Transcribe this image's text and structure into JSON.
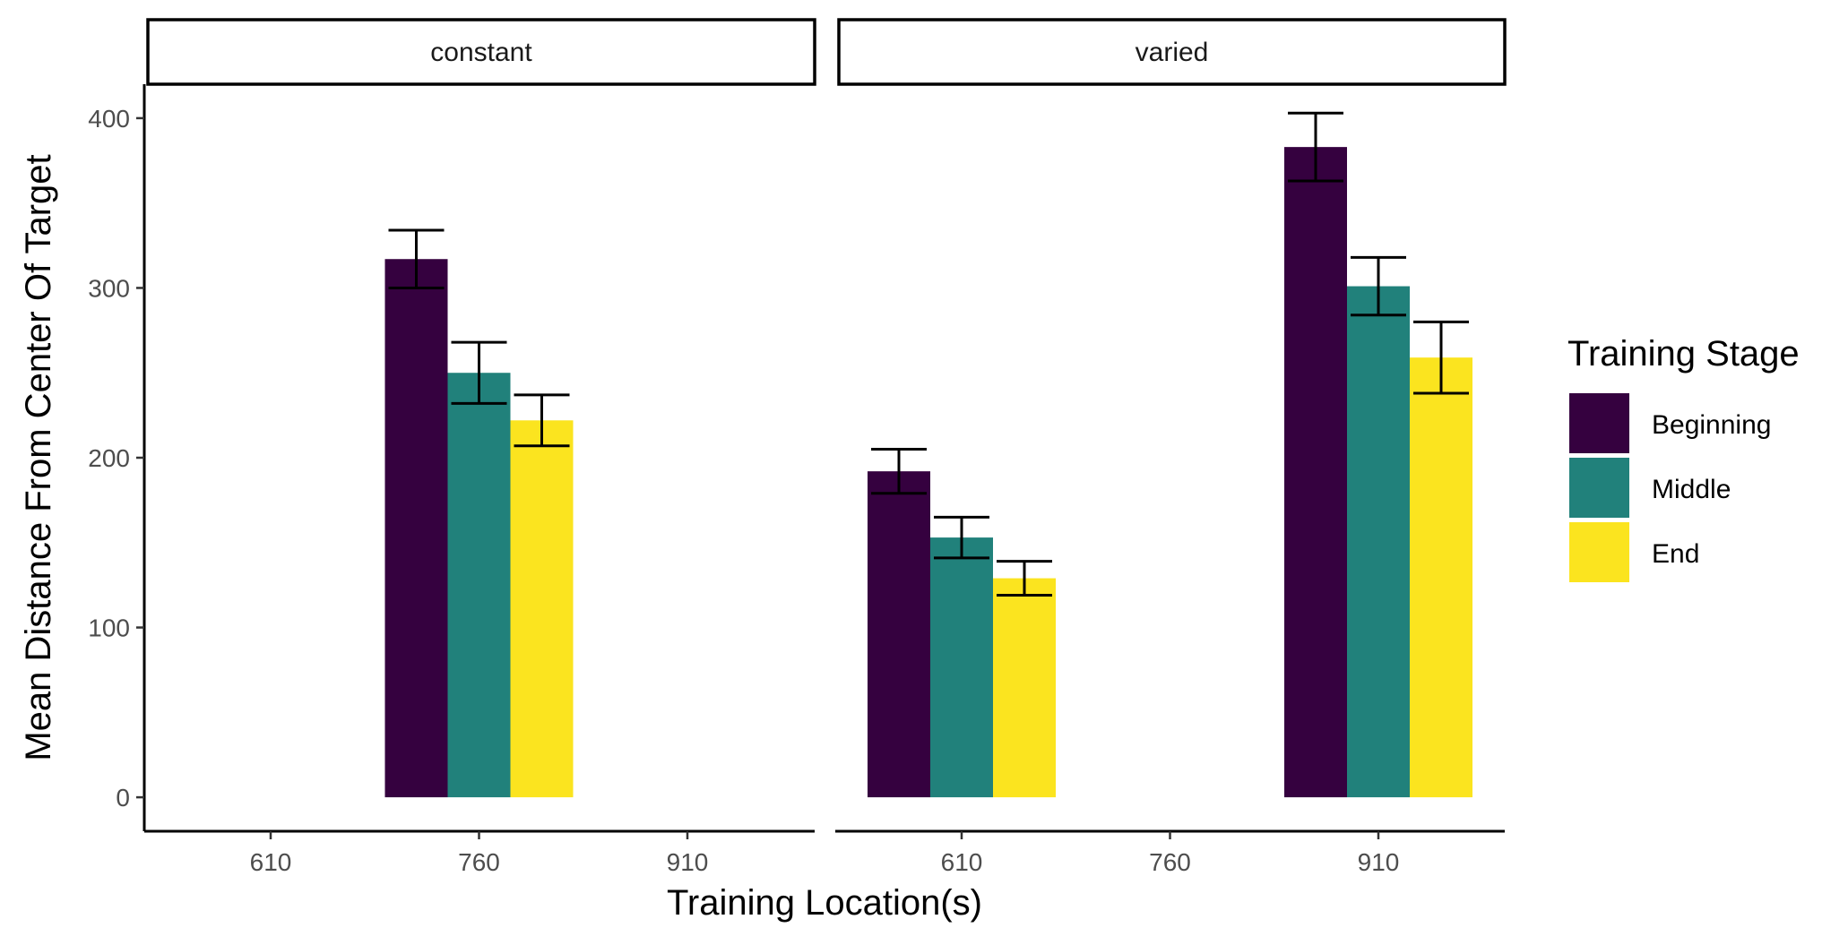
{
  "chart_data": {
    "type": "bar",
    "facet_var": "condition",
    "panels": [
      {
        "label": "constant",
        "categories": [
          "610",
          "760",
          "910"
        ],
        "series": [
          {
            "name": "Beginning",
            "values": [
              null,
              317,
              null
            ],
            "errors": [
              null,
              17,
              null
            ]
          },
          {
            "name": "Middle",
            "values": [
              null,
              250,
              null
            ],
            "errors": [
              null,
              18,
              null
            ]
          },
          {
            "name": "End",
            "values": [
              null,
              222,
              null
            ],
            "errors": [
              null,
              15,
              null
            ]
          }
        ]
      },
      {
        "label": "varied",
        "categories": [
          "610",
          "760",
          "910"
        ],
        "series": [
          {
            "name": "Beginning",
            "values": [
              192,
              null,
              383
            ],
            "errors": [
              13,
              null,
              20
            ]
          },
          {
            "name": "Middle",
            "values": [
              153,
              null,
              301
            ],
            "errors": [
              12,
              null,
              17
            ]
          },
          {
            "name": "End",
            "values": [
              129,
              null,
              259
            ],
            "errors": [
              10,
              null,
              21
            ]
          }
        ]
      }
    ],
    "xlabel": "Training Location(s)",
    "ylabel": "Mean Distance From Center Of Target",
    "ylim": [
      -20,
      420
    ],
    "yticks": [
      0,
      100,
      200,
      300,
      400
    ],
    "grid": false,
    "legend": {
      "title": "Training Stage",
      "position": "right",
      "entries": [
        "Beginning",
        "Middle",
        "End"
      ]
    },
    "colors": {
      "Beginning": "#35013f",
      "Middle": "#21817b",
      "End": "#fbe41f"
    }
  }
}
